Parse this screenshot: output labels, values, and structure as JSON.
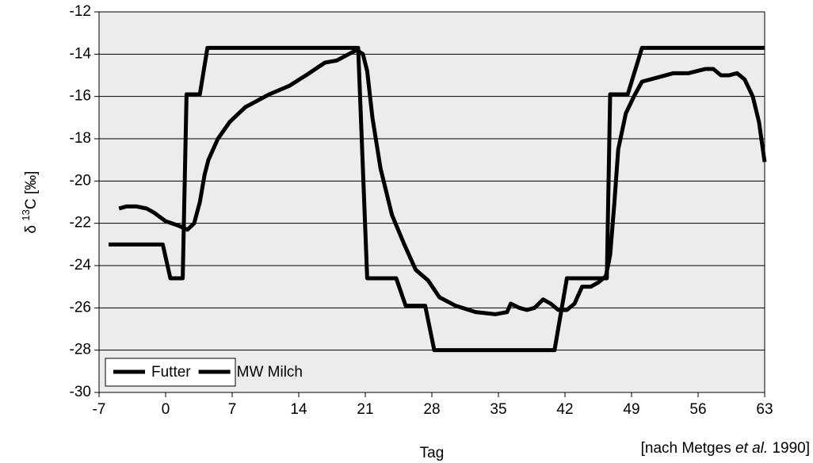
{
  "chart_data": {
    "type": "line",
    "x_label": "Tag",
    "y_label": {
      "prefix": "δ ",
      "sup": "13",
      "suffix": "C [‰]"
    },
    "source": [
      "[nach Metges ",
      "et al.",
      " 1990]"
    ],
    "xlim": [
      -7,
      63
    ],
    "xticks": [
      -7,
      0,
      7,
      14,
      21,
      28,
      35,
      42,
      49,
      56,
      63
    ],
    "ylim": [
      -30,
      -12
    ],
    "yticks": [
      -30,
      -28,
      -26,
      -24,
      -22,
      -20,
      -18,
      -16,
      -14,
      -12
    ],
    "grid": true,
    "legend": "lower left",
    "background": "#ececec",
    "series": [
      {
        "name": "Futter",
        "color": "#000000",
        "x": [
          -6,
          -0.3,
          0.5,
          1.8,
          2.2,
          3.6,
          4.4,
          20.25,
          21.2,
          24.25,
          25.25,
          27.3,
          28.25,
          40.9,
          42.2,
          46.4,
          46.75,
          48.6,
          50.1,
          63
        ],
        "values": [
          -23,
          -23,
          -24.6,
          -24.6,
          -15.9,
          -15.9,
          -13.7,
          -13.7,
          -24.6,
          -24.6,
          -25.9,
          -25.9,
          -28,
          -28,
          -24.6,
          -24.6,
          -15.9,
          -15.9,
          -13.7,
          -13.7
        ]
      },
      {
        "name": "MW Milch",
        "color": "#000000",
        "x": [
          -4.9,
          -4.1,
          -3.1,
          -2,
          -1.2,
          0,
          1.3,
          2.3,
          3,
          3.6,
          4.1,
          4.5,
          5.5,
          6.75,
          8.4,
          10.9,
          13,
          15.1,
          16.75,
          18,
          19.25,
          20.1,
          20.75,
          21.2,
          21.75,
          22.6,
          23.8,
          25.1,
          26.3,
          27.6,
          28.8,
          30.5,
          32.6,
          34.7,
          35.9,
          36.3,
          37.2,
          38,
          38.8,
          39.7,
          40.5,
          41.3,
          42.2,
          43,
          43.8,
          44.7,
          45.5,
          46.3,
          46.75,
          47.2,
          47.6,
          48.4,
          49.25,
          50.1,
          51.75,
          53.4,
          55,
          56.75,
          57.6,
          58.4,
          59.25,
          60.1,
          60.9,
          61.75,
          62.4,
          63
        ],
        "values": [
          -21.3,
          -21.2,
          -21.2,
          -21.3,
          -21.5,
          -21.9,
          -22.1,
          -22.3,
          -22,
          -21,
          -19.7,
          -19,
          -18,
          -17.2,
          -16.5,
          -15.9,
          -15.5,
          -14.9,
          -14.4,
          -14.3,
          -14,
          -13.8,
          -14,
          -14.8,
          -17,
          -19.4,
          -21.6,
          -23,
          -24.2,
          -24.7,
          -25.5,
          -25.9,
          -26.2,
          -26.3,
          -26.2,
          -25.8,
          -26,
          -26.1,
          -26,
          -25.6,
          -25.8,
          -26.1,
          -26.1,
          -25.8,
          -25,
          -25,
          -24.8,
          -24.5,
          -23.5,
          -21,
          -18.5,
          -16.8,
          -16,
          -15.3,
          -15.1,
          -14.9,
          -14.9,
          -14.7,
          -14.7,
          -15,
          -15,
          -14.9,
          -15.2,
          -16,
          -17.2,
          -19.1
        ]
      }
    ]
  }
}
